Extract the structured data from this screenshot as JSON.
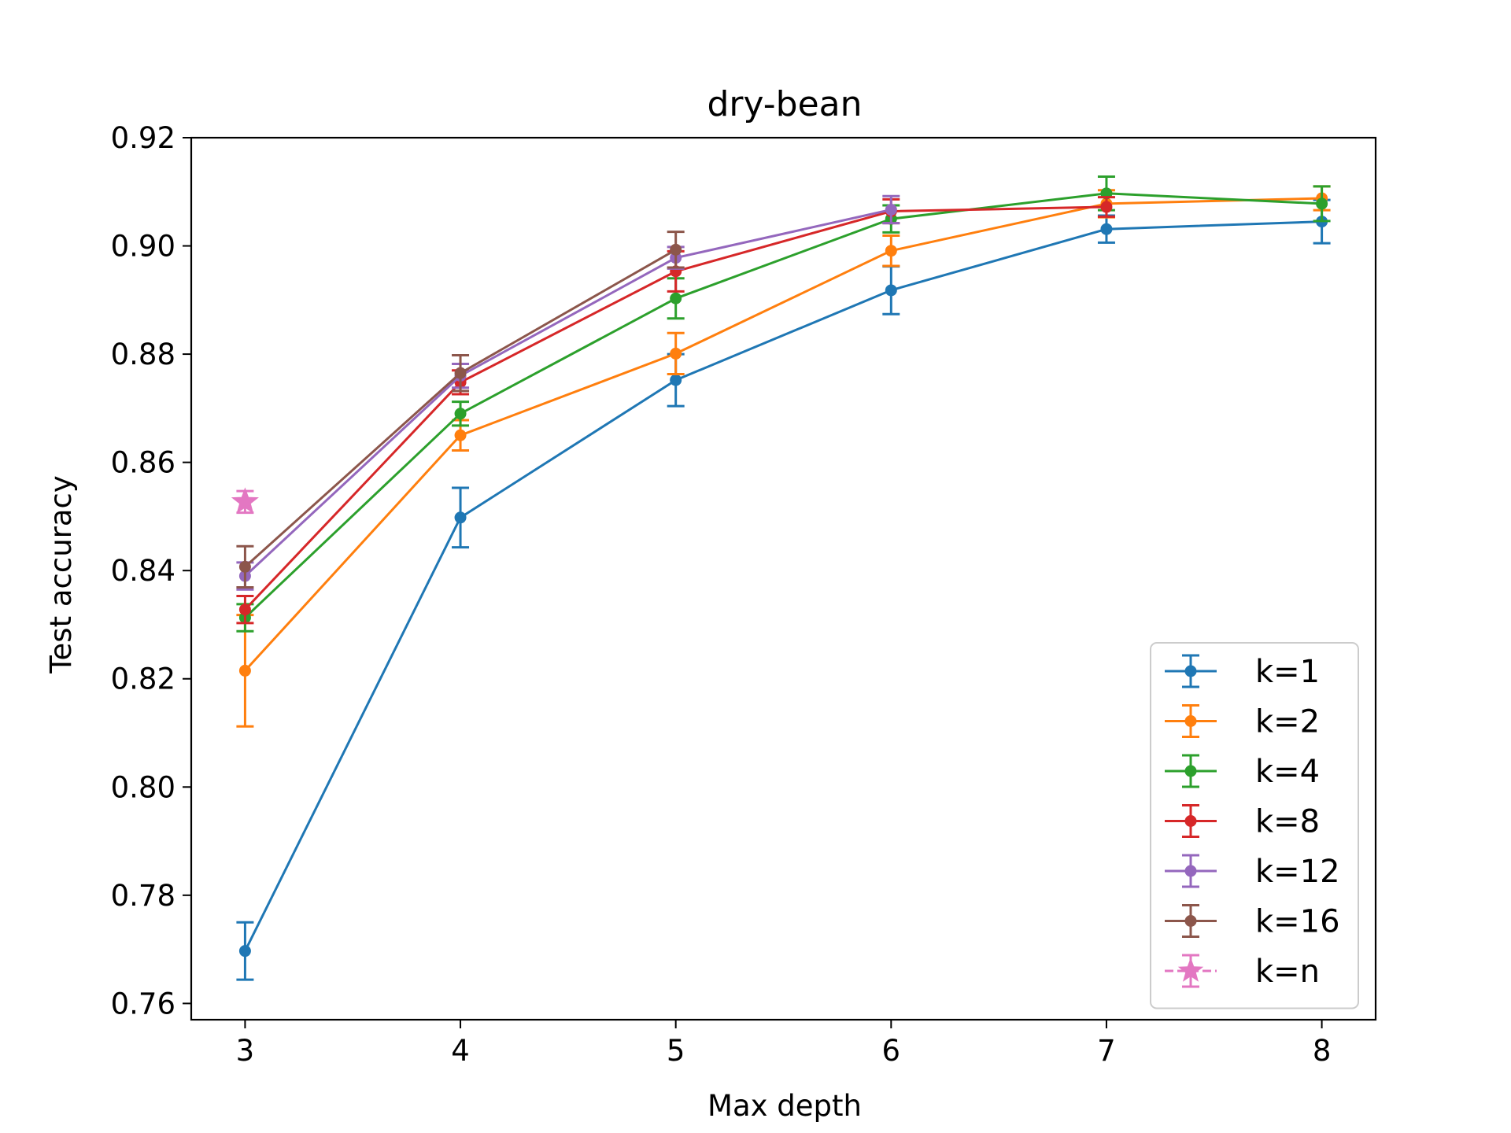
{
  "chart_data": {
    "type": "line",
    "title": "dry-bean",
    "xlabel": "Max depth",
    "ylabel": "Test accuracy",
    "xlim": [
      2.75,
      8.25
    ],
    "ylim": [
      0.757,
      0.92
    ],
    "xticks": [
      3,
      4,
      5,
      6,
      7,
      8
    ],
    "yticks": [
      0.76,
      0.78,
      0.8,
      0.82,
      0.84,
      0.86,
      0.88,
      0.9,
      0.92
    ],
    "ytick_labels": [
      "0.76",
      "0.78",
      "0.80",
      "0.82",
      "0.84",
      "0.86",
      "0.88",
      "0.90",
      "0.92"
    ],
    "legend_position": "lower-right",
    "grid": false,
    "series": [
      {
        "name": "k=1",
        "color": "#1f77b4",
        "marker": "circle",
        "linestyle": "solid",
        "x": [
          3,
          4,
          5,
          6,
          7,
          8
        ],
        "y": [
          0.7697,
          0.8498,
          0.8752,
          0.8918,
          0.9031,
          0.9045
        ],
        "err": [
          0.0053,
          0.0055,
          0.0048,
          0.0044,
          0.0025,
          0.004
        ]
      },
      {
        "name": "k=2",
        "color": "#ff7f0e",
        "marker": "circle",
        "linestyle": "solid",
        "x": [
          3,
          4,
          5,
          6,
          7,
          8
        ],
        "y": [
          0.8215,
          0.865,
          0.8801,
          0.8991,
          0.9078,
          0.9088
        ],
        "err": [
          0.0103,
          0.0028,
          0.0038,
          0.0028,
          0.0025,
          0.0022
        ]
      },
      {
        "name": "k=4",
        "color": "#2ca02c",
        "marker": "circle",
        "linestyle": "solid",
        "x": [
          3,
          4,
          5,
          6,
          7,
          8
        ],
        "y": [
          0.8313,
          0.869,
          0.8903,
          0.905,
          0.9097,
          0.9078
        ],
        "err": [
          0.0025,
          0.0022,
          0.0037,
          0.0025,
          0.0031,
          0.0032
        ]
      },
      {
        "name": "k=8",
        "color": "#d62728",
        "marker": "circle",
        "linestyle": "solid",
        "x": [
          3,
          4,
          5,
          6,
          7
        ],
        "y": [
          0.8328,
          0.8748,
          0.8953,
          0.9064,
          0.9072
        ],
        "err": [
          0.0025,
          0.0022,
          0.0037,
          0.0022,
          0.0018
        ]
      },
      {
        "name": "k=12",
        "color": "#9467bd",
        "marker": "circle",
        "linestyle": "solid",
        "x": [
          3,
          4,
          5,
          6
        ],
        "y": [
          0.839,
          0.876,
          0.8978,
          0.9067
        ],
        "err": [
          0.0025,
          0.0022,
          0.002,
          0.0025
        ]
      },
      {
        "name": "k=16",
        "color": "#8c564b",
        "marker": "circle",
        "linestyle": "solid",
        "x": [
          3,
          4,
          5
        ],
        "y": [
          0.8407,
          0.8765,
          0.8993
        ],
        "err": [
          0.0038,
          0.0033,
          0.0033
        ]
      },
      {
        "name": "k=n",
        "color": "#e377c2",
        "marker": "star",
        "linestyle": "dashed",
        "x": [
          3
        ],
        "y": [
          0.8527
        ],
        "err": [
          0.002
        ]
      }
    ]
  }
}
